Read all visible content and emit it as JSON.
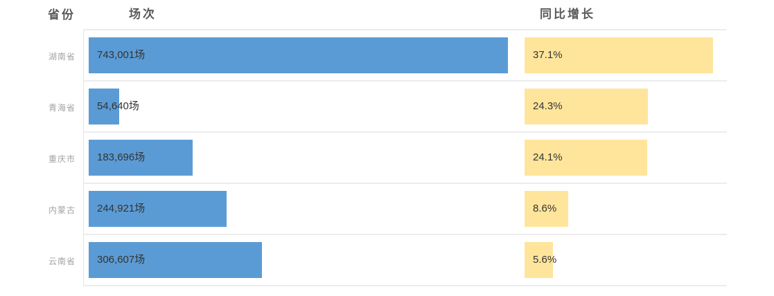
{
  "header": {
    "province": "省份",
    "sessions": "场次",
    "growth": "同比增长"
  },
  "chart_data": {
    "type": "bar",
    "orientation": "horizontal",
    "title": "",
    "columns": [
      "省份",
      "场次",
      "同比增长"
    ],
    "series": [
      {
        "name": "场次",
        "unit": "场",
        "color": "#5B9BD5"
      },
      {
        "name": "同比增长",
        "unit": "%",
        "color": "#FFE59B"
      }
    ],
    "rows": [
      {
        "province": "湖南省",
        "sessions": 743001,
        "sessions_label": "743,001场",
        "growth_pct": 37.1,
        "growth_label": "37.1%"
      },
      {
        "province": "青海省",
        "sessions": 54640,
        "sessions_label": "54,640场",
        "growth_pct": 24.3,
        "growth_label": "24.3%"
      },
      {
        "province": "重庆市",
        "sessions": 183696,
        "sessions_label": "183,696场",
        "growth_pct": 24.1,
        "growth_label": "24.1%"
      },
      {
        "province": "内蒙古",
        "sessions": 244921,
        "sessions_label": "244,921场",
        "growth_pct": 8.6,
        "growth_label": "8.6%"
      },
      {
        "province": "云南省",
        "sessions": 306607,
        "sessions_label": "306,607场",
        "growth_pct": 5.6,
        "growth_label": "5.6%"
      }
    ],
    "colors": {
      "sessions_bar": "#5B9BD5",
      "growth_bar": "#FFE59B",
      "bar_text": "#333333",
      "header_text": "#595959",
      "row_label_text": "#A3A3A3",
      "gridline": "#ECECEC"
    },
    "legend": "none",
    "grid": "row-separators"
  }
}
